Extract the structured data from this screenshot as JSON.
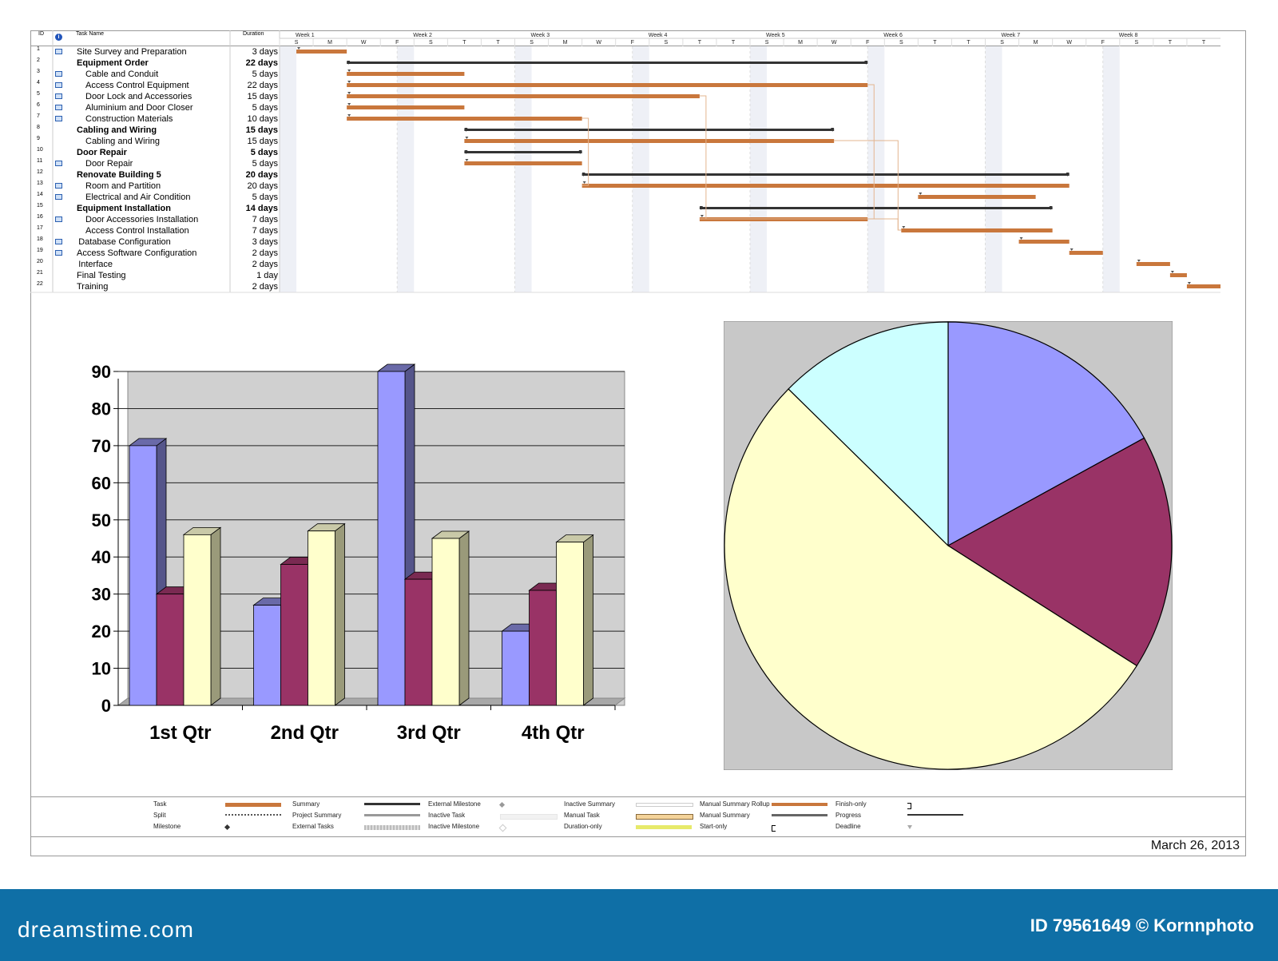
{
  "gantt": {
    "headers": {
      "id": "ID",
      "info": "i",
      "task_name": "Task Name",
      "duration": "Duration"
    },
    "weeks": [
      "Week 1",
      "Week 2",
      "Week 3",
      "Week 4",
      "Week 5",
      "Week 6",
      "Week 7",
      "Week 8"
    ],
    "days": [
      "S",
      "M",
      "W",
      "F",
      "S",
      "T",
      "T",
      "S",
      "M",
      "W",
      "F",
      "S",
      "T",
      "T",
      "S",
      "M",
      "W",
      "F",
      "S",
      "T",
      "T",
      "S",
      "M",
      "W",
      "F",
      "S",
      "T",
      "T"
    ],
    "tasks": [
      {
        "id": "1",
        "name": "Site Survey and Preparation",
        "duration": "3 days",
        "bold": false,
        "indent": 0,
        "icon": true,
        "type": "task",
        "start": 1,
        "end": 4
      },
      {
        "id": "2",
        "name": "Equipment Order",
        "duration": "22 days",
        "bold": true,
        "indent": 0,
        "icon": false,
        "type": "summary",
        "start": 4,
        "end": 35
      },
      {
        "id": "3",
        "name": "Cable and Conduit",
        "duration": "5 days",
        "bold": false,
        "indent": 1,
        "icon": true,
        "type": "task",
        "start": 4,
        "end": 11
      },
      {
        "id": "4",
        "name": "Access Control Equipment",
        "duration": "22 days",
        "bold": false,
        "indent": 1,
        "icon": true,
        "type": "task",
        "start": 4,
        "end": 35
      },
      {
        "id": "5",
        "name": "Door Lock and Accessories",
        "duration": "15 days",
        "bold": false,
        "indent": 1,
        "icon": true,
        "type": "task",
        "start": 4,
        "end": 25
      },
      {
        "id": "6",
        "name": "Aluminium and Door Closer",
        "duration": "5 days",
        "bold": false,
        "indent": 1,
        "icon": true,
        "type": "task",
        "start": 4,
        "end": 11
      },
      {
        "id": "7",
        "name": "Construction Materials",
        "duration": "10 days",
        "bold": false,
        "indent": 1,
        "icon": true,
        "type": "task",
        "start": 4,
        "end": 18
      },
      {
        "id": "8",
        "name": "Cabling and Wiring",
        "duration": "15 days",
        "bold": true,
        "indent": 0,
        "icon": false,
        "type": "summary",
        "start": 11,
        "end": 33
      },
      {
        "id": "9",
        "name": "Cabling and Wiring",
        "duration": "15 days",
        "bold": false,
        "indent": 1,
        "icon": false,
        "type": "task",
        "start": 11,
        "end": 33
      },
      {
        "id": "10",
        "name": "Door Repair",
        "duration": "5 days",
        "bold": true,
        "indent": 0,
        "icon": false,
        "type": "summary",
        "start": 11,
        "end": 18
      },
      {
        "id": "11",
        "name": "Door Repair",
        "duration": "5 days",
        "bold": false,
        "indent": 1,
        "icon": true,
        "type": "task",
        "start": 11,
        "end": 18
      },
      {
        "id": "12",
        "name": "Renovate Building 5",
        "duration": "20 days",
        "bold": true,
        "indent": 0,
        "icon": false,
        "type": "summary",
        "start": 18,
        "end": 47
      },
      {
        "id": "13",
        "name": "Room and Partition",
        "duration": "20 days",
        "bold": false,
        "indent": 1,
        "icon": true,
        "type": "task",
        "start": 18,
        "end": 47
      },
      {
        "id": "14",
        "name": "Electrical and Air Condition",
        "duration": "5 days",
        "bold": false,
        "indent": 1,
        "icon": true,
        "type": "task",
        "start": 38,
        "end": 45
      },
      {
        "id": "15",
        "name": "Equipment Installation",
        "duration": "14 days",
        "bold": true,
        "indent": 0,
        "icon": false,
        "type": "summary",
        "start": 25,
        "end": 46
      },
      {
        "id": "16",
        "name": "Door Accessories Installation",
        "duration": "7 days",
        "bold": false,
        "indent": 1,
        "icon": true,
        "type": "task",
        "start": 25,
        "end": 35
      },
      {
        "id": "17",
        "name": "Access Control Installation",
        "duration": "7 days",
        "bold": false,
        "indent": 1,
        "icon": false,
        "type": "task",
        "start": 37,
        "end": 46
      },
      {
        "id": "18",
        "name": "Database Configuration",
        "duration": "3 days",
        "bold": false,
        "indent": 0.2,
        "icon": true,
        "type": "task",
        "start": 44,
        "end": 47
      },
      {
        "id": "19",
        "name": "Access Software Configuration",
        "duration": "2 days",
        "bold": false,
        "indent": 0,
        "icon": true,
        "type": "task",
        "start": 47,
        "end": 49
      },
      {
        "id": "20",
        "name": "Interface",
        "duration": "2 days",
        "bold": false,
        "indent": 0.2,
        "icon": false,
        "type": "task",
        "start": 51,
        "end": 53
      },
      {
        "id": "21",
        "name": "Final Testing",
        "duration": "1 day",
        "bold": false,
        "indent": 0,
        "icon": false,
        "type": "task",
        "start": 53,
        "end": 54
      },
      {
        "id": "22",
        "name": "Training",
        "duration": "2 days",
        "bold": false,
        "indent": 0,
        "icon": false,
        "type": "task",
        "start": 54,
        "end": 56
      }
    ]
  },
  "chart_data": [
    {
      "type": "bar",
      "categories": [
        "1st Qtr",
        "2nd Qtr",
        "3rd Qtr",
        "4th Qtr"
      ],
      "series": [
        {
          "values": [
            70,
            27,
            90,
            20
          ]
        },
        {
          "values": [
            30,
            38,
            34,
            31
          ]
        },
        {
          "values": [
            46,
            47,
            45,
            44
          ]
        }
      ],
      "ylim": [
        0,
        90
      ],
      "yticks": [
        "0",
        "10",
        "20",
        "30",
        "40",
        "50",
        "60",
        "70",
        "80",
        "90"
      ],
      "grid": true,
      "colors": [
        "#9999ff",
        "#993366",
        "#ffffcc"
      ],
      "title": "",
      "xlabel": "",
      "ylabel": ""
    },
    {
      "type": "pie",
      "values": [
        8.2,
        8.2,
        25.7,
        6.1
      ],
      "colors": [
        "#9999ff",
        "#993366",
        "#ffffcc",
        "#ccffff"
      ]
    }
  ],
  "legend": {
    "items": [
      {
        "label": "Task",
        "sym": "task"
      },
      {
        "label": "Split",
        "sym": "split"
      },
      {
        "label": "Milestone",
        "sym": "milestone"
      },
      {
        "label": "Summary",
        "sym": "summary"
      },
      {
        "label": "Project Summary",
        "sym": "projsummary"
      },
      {
        "label": "External Tasks",
        "sym": "external"
      },
      {
        "label": "External Milestone",
        "sym": "extmilestone"
      },
      {
        "label": "Inactive Task",
        "sym": "inactivetask"
      },
      {
        "label": "Inactive Milestone",
        "sym": "inactivemilestone"
      },
      {
        "label": "Inactive Summary",
        "sym": "inactivesummary"
      },
      {
        "label": "Manual Task",
        "sym": "manualtask"
      },
      {
        "label": "Duration-only",
        "sym": "durationonly"
      },
      {
        "label": "Manual Summary Rollup",
        "sym": "manualrollup"
      },
      {
        "label": "Manual Summary",
        "sym": "manualsummary"
      },
      {
        "label": "Start-only",
        "sym": "startonly"
      },
      {
        "label": "Finish-only",
        "sym": "finishonly"
      },
      {
        "label": "Progress",
        "sym": "progress"
      },
      {
        "label": "Deadline",
        "sym": "deadline"
      }
    ]
  },
  "footer": {
    "date": "March 26, 2013"
  },
  "banner": {
    "brand": "dreamstime.com",
    "stock_id": "ID 79561649 © Kornnphoto"
  },
  "colors": {
    "task_bar": "#c9773c",
    "summary_bar": "#333333",
    "banner": "#0f6fa6"
  }
}
